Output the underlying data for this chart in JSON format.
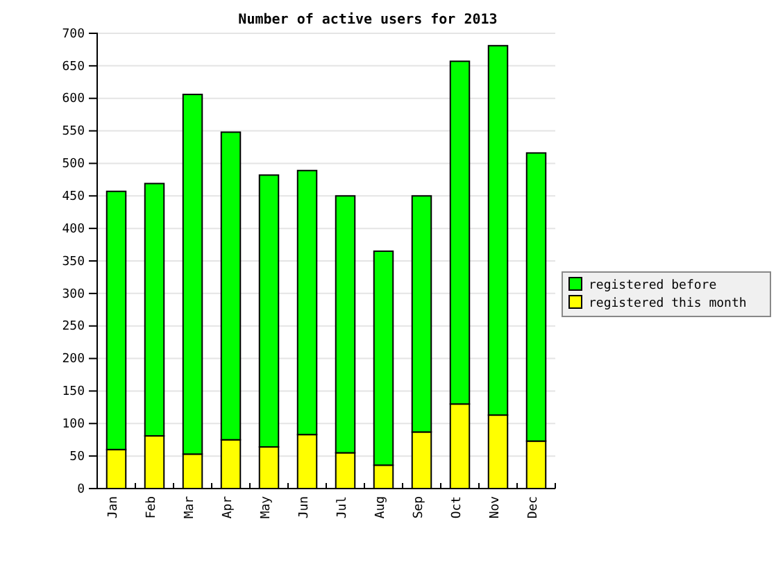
{
  "chart_data": {
    "type": "bar",
    "title": "Number of active users for 2013",
    "categories": [
      "Jan",
      "Feb",
      "Mar",
      "Apr",
      "May",
      "Jun",
      "Jul",
      "Aug",
      "Sep",
      "Oct",
      "Nov",
      "Dec"
    ],
    "series": [
      {
        "name": "registered this month",
        "color": "#ffff00",
        "values": [
          60,
          81,
          53,
          75,
          64,
          83,
          55,
          36,
          87,
          130,
          113,
          73
        ]
      },
      {
        "name": "registered before",
        "color": "#00ff00",
        "values": [
          397,
          388,
          553,
          473,
          418,
          406,
          395,
          329,
          363,
          527,
          568,
          443
        ]
      }
    ],
    "stacked": true,
    "ylim": [
      0,
      700
    ],
    "yticks": [
      0,
      50,
      100,
      150,
      200,
      250,
      300,
      350,
      400,
      450,
      500,
      550,
      600,
      650,
      700
    ],
    "grid": "y",
    "legend": "right"
  }
}
